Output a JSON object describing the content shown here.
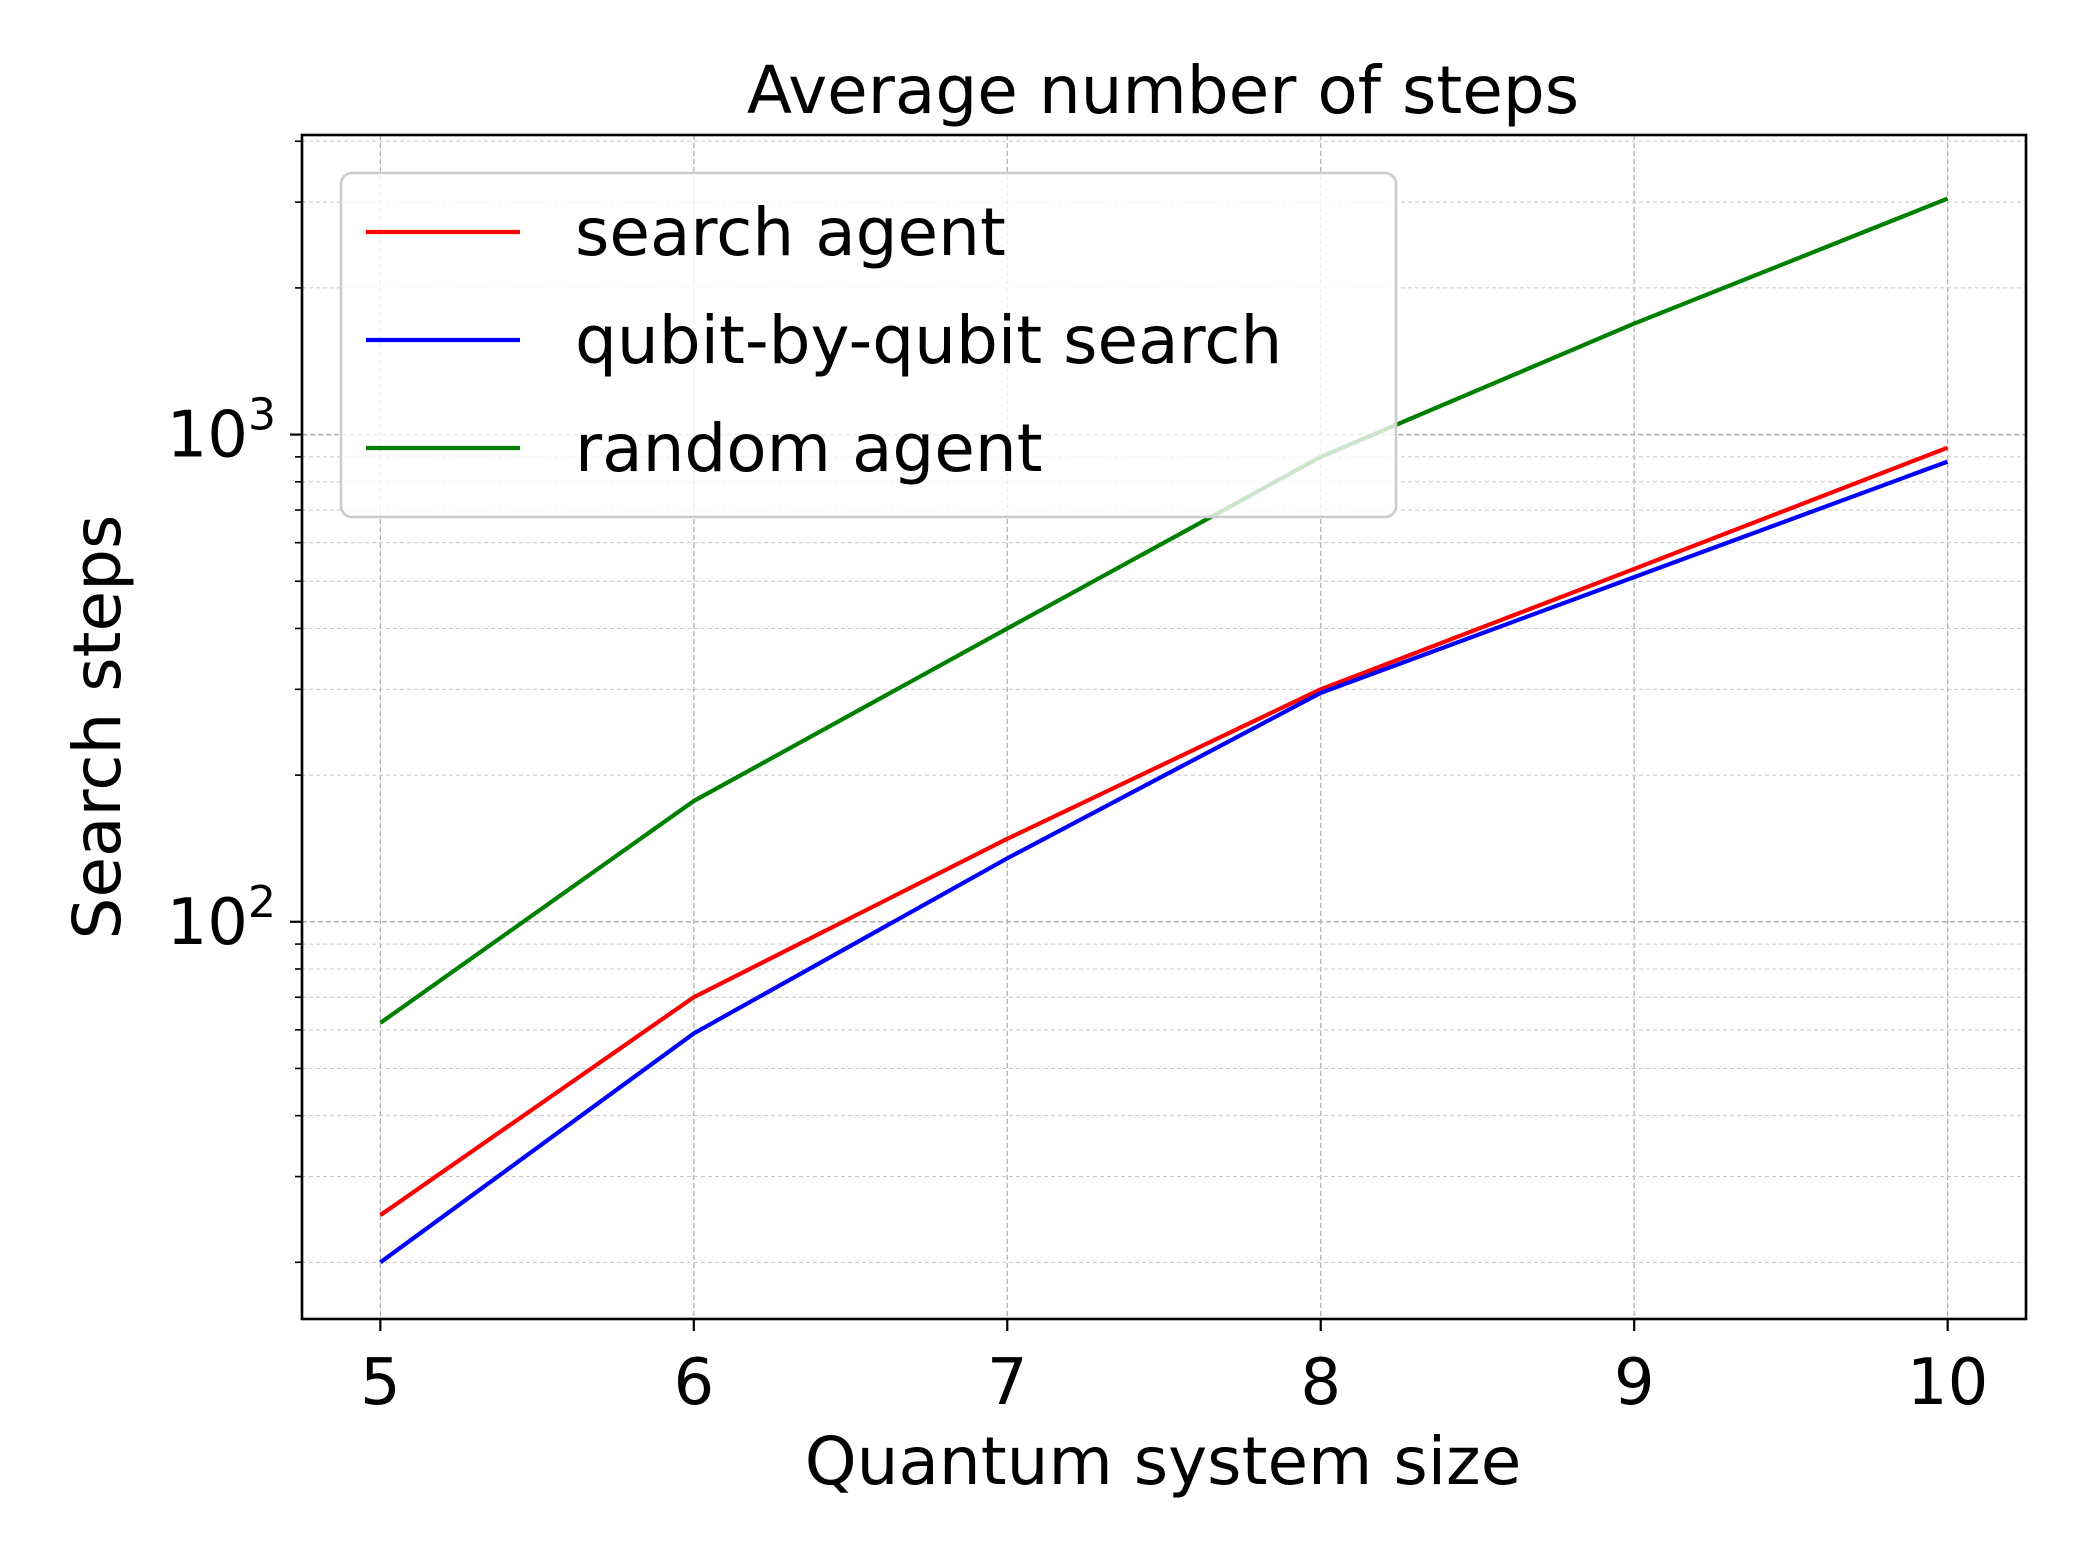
{
  "chart_data": {
    "type": "line",
    "title": "Average number of steps",
    "xlabel": "Quantum system size",
    "ylabel": "Search steps",
    "yscale": "log",
    "xlim": [
      4.75,
      10.25
    ],
    "ylim": [
      15.3,
      4120
    ],
    "x": [
      5,
      6,
      7,
      8,
      9,
      10
    ],
    "x_tick_labels": [
      "5",
      "6",
      "7",
      "8",
      "9",
      "10"
    ],
    "y_major_ticks": [
      {
        "value": 100,
        "base": "10",
        "exp": "2"
      },
      {
        "value": 1000,
        "base": "10",
        "exp": "3"
      }
    ],
    "grid": true,
    "legend_position": "upper-left",
    "series": [
      {
        "name": "search agent",
        "color": "#ff0000",
        "values": [
          25,
          70,
          148,
          300,
          530,
          940
        ]
      },
      {
        "name": "qubit-by-qubit search",
        "color": "#0000ff",
        "values": [
          20,
          59,
          135,
          295,
          510,
          880
        ]
      },
      {
        "name": "random agent",
        "color": "#008000",
        "values": [
          62,
          177,
          400,
          900,
          1690,
          3050
        ]
      }
    ]
  }
}
